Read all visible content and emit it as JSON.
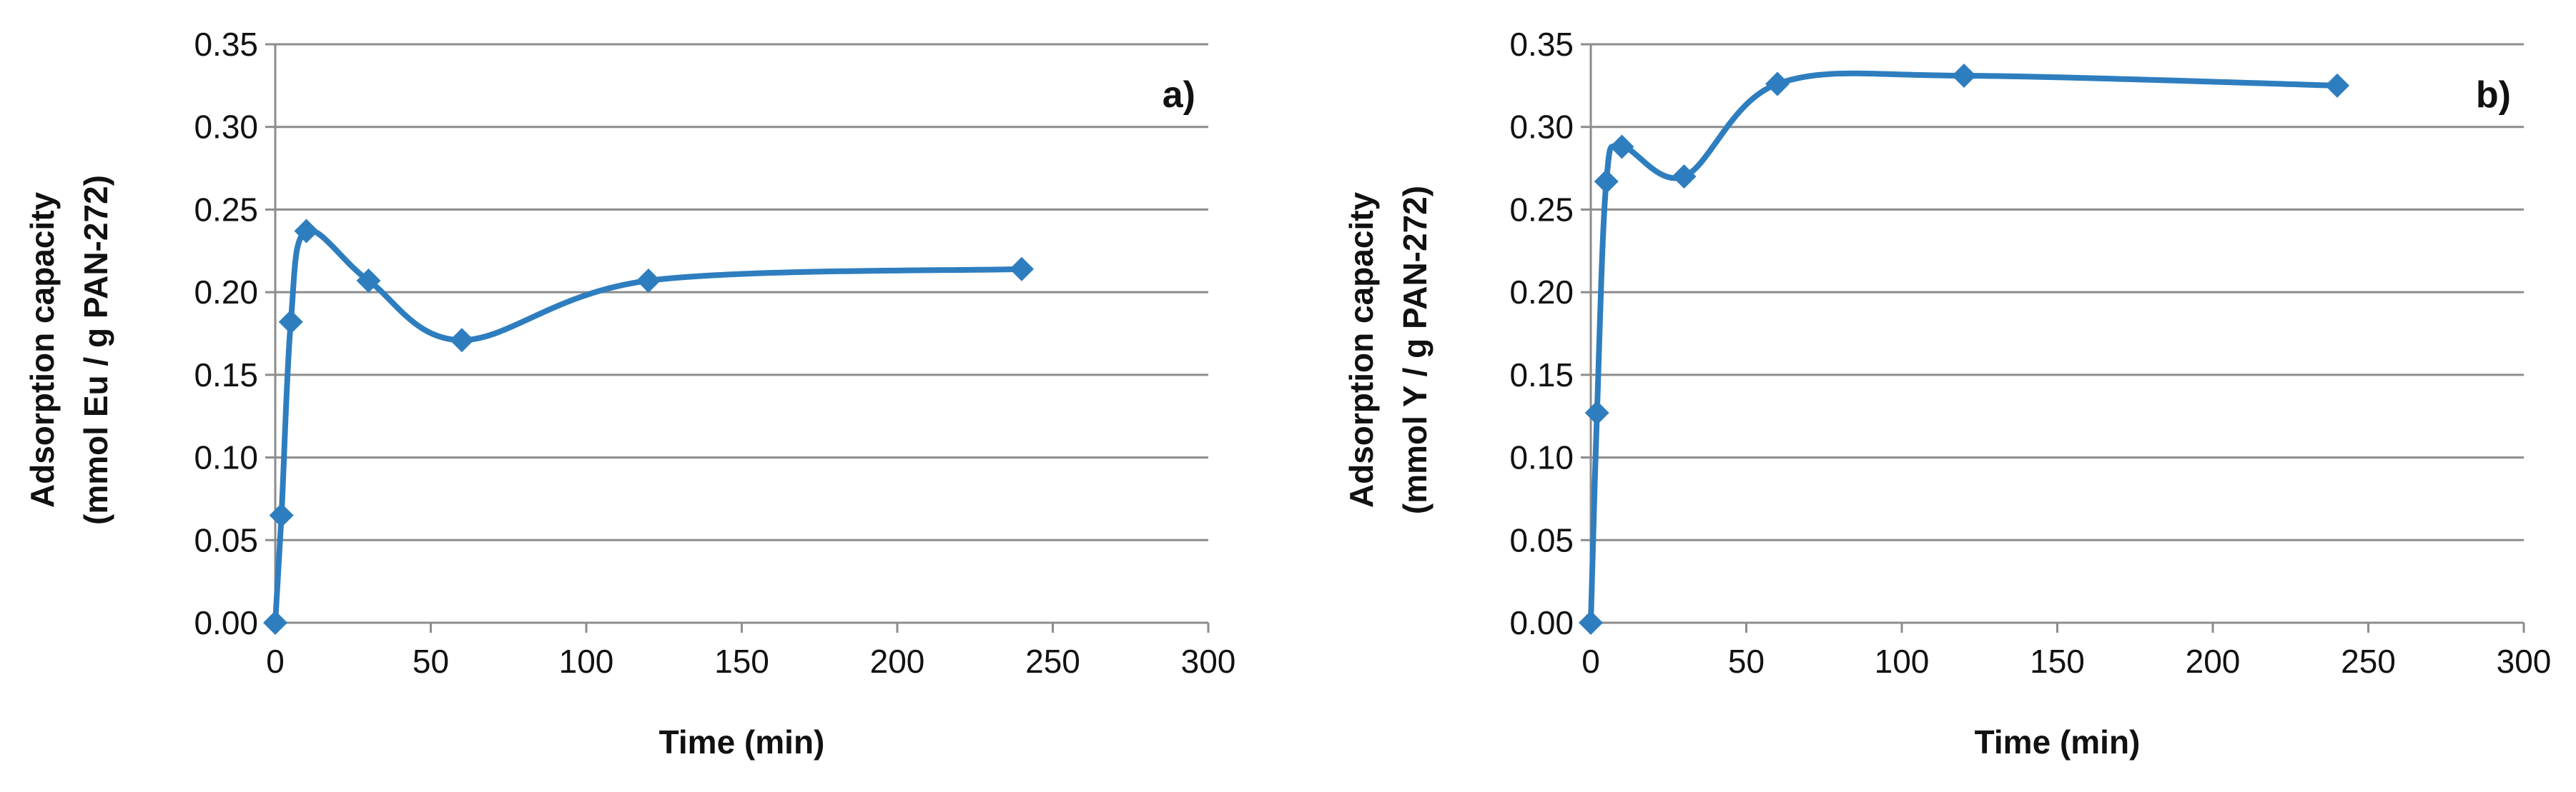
{
  "chart_data": [
    {
      "type": "line",
      "panel_label": "a)",
      "xlabel": "Time (min)",
      "ylabel_line1": "Adsorption capacity",
      "ylabel_line2": "(mmol Eu / g PAN-272)",
      "xlim": [
        0,
        300
      ],
      "ylim": [
        0,
        0.35
      ],
      "xticks": [
        "0",
        "50",
        "100",
        "150",
        "200",
        "250",
        "300"
      ],
      "yticks": [
        "0.00",
        "0.05",
        "0.10",
        "0.15",
        "0.20",
        "0.25",
        "0.30",
        "0.35"
      ],
      "grid": true,
      "line_color": "#2e7ebf",
      "marker": "diamond",
      "smooth": true,
      "series": [
        {
          "name": "Eu",
          "x": [
            0,
            2,
            5,
            10,
            30,
            60,
            120,
            240
          ],
          "y": [
            0.0,
            0.065,
            0.182,
            0.237,
            0.207,
            0.171,
            0.207,
            0.214
          ]
        }
      ]
    },
    {
      "type": "line",
      "panel_label": "b)",
      "xlabel": "Time (min)",
      "ylabel_line1": "Adsorption capacity",
      "ylabel_line2": "(mmol Y / g PAN-272)",
      "xlim": [
        0,
        300
      ],
      "ylim": [
        0,
        0.35
      ],
      "xticks": [
        "0",
        "50",
        "100",
        "150",
        "200",
        "250",
        "300"
      ],
      "yticks": [
        "0.00",
        "0.05",
        "0.10",
        "0.15",
        "0.20",
        "0.25",
        "0.30",
        "0.35"
      ],
      "grid": true,
      "line_color": "#2e7ebf",
      "marker": "diamond",
      "smooth": true,
      "series": [
        {
          "name": "Y",
          "x": [
            0,
            2,
            5,
            10,
            30,
            60,
            120,
            240
          ],
          "y": [
            0.0,
            0.127,
            0.267,
            0.288,
            0.27,
            0.326,
            0.331,
            0.325
          ]
        }
      ]
    }
  ]
}
